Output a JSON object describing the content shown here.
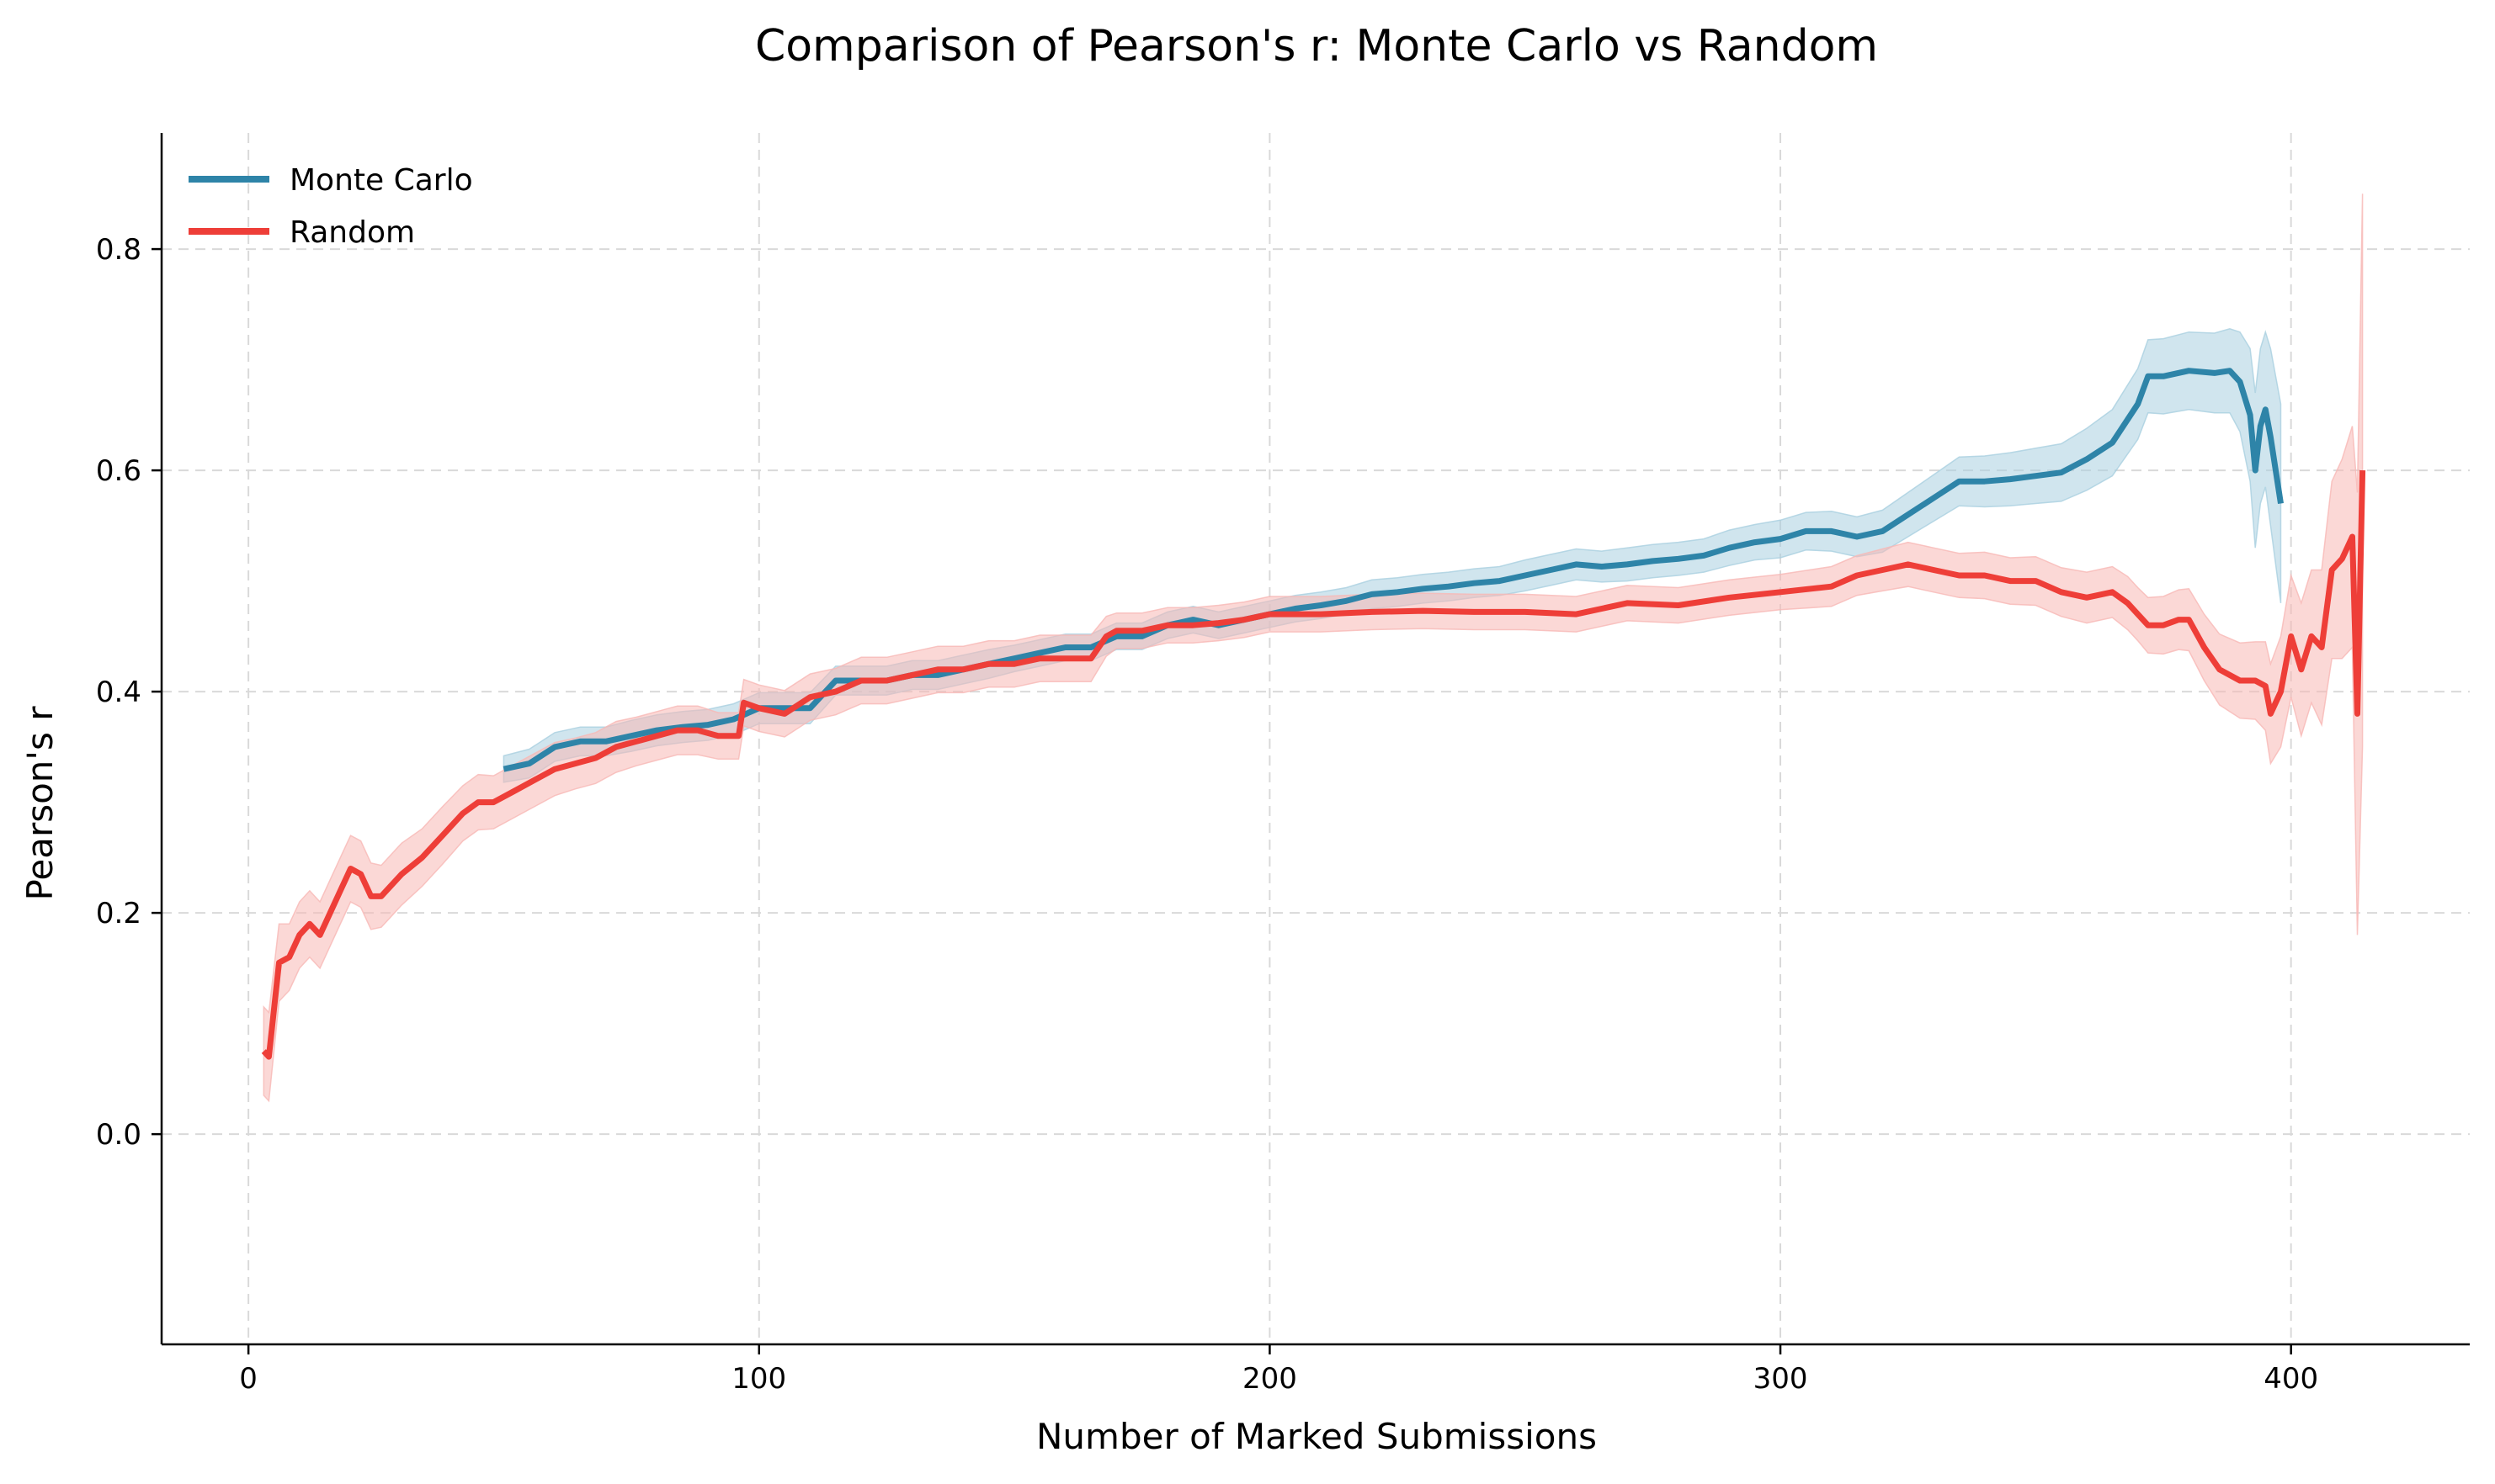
{
  "chart_data": {
    "type": "line",
    "title": "Comparison of Pearson's r: Monte Carlo vs Random",
    "xlabel": "Number of Marked Submissions",
    "ylabel": "Pearson's r",
    "xlim": [
      -17,
      435
    ],
    "ylim": [
      -0.19,
      0.905
    ],
    "xticks": [
      0,
      100,
      200,
      300,
      400
    ],
    "yticks": [
      0.0,
      0.2,
      0.4,
      0.6,
      0.8
    ],
    "xtick_labels": [
      "0",
      "100",
      "200",
      "300",
      "400"
    ],
    "ytick_labels": [
      "0.0",
      "0.2",
      "0.4",
      "0.6",
      "0.8"
    ],
    "grid": true,
    "legend_position": "top-left",
    "series": [
      {
        "name": "Monte Carlo",
        "color": "#2e84a8",
        "band_color": "#a9cfe0",
        "x": [
          50,
          55,
          60,
          65,
          70,
          75,
          80,
          85,
          90,
          95,
          100,
          105,
          110,
          115,
          120,
          125,
          130,
          135,
          140,
          145,
          150,
          155,
          160,
          165,
          170,
          175,
          180,
          185,
          190,
          195,
          200,
          205,
          210,
          215,
          220,
          225,
          230,
          235,
          240,
          245,
          250,
          255,
          260,
          265,
          270,
          275,
          280,
          285,
          290,
          295,
          300,
          305,
          310,
          315,
          320,
          325,
          330,
          335,
          340,
          345,
          350,
          355,
          360,
          365,
          370,
          372,
          375,
          380,
          385,
          388,
          390,
          392,
          393,
          394,
          395,
          396,
          398
        ],
        "y": [
          0.33,
          0.335,
          0.35,
          0.355,
          0.355,
          0.36,
          0.365,
          0.368,
          0.37,
          0.375,
          0.385,
          0.385,
          0.385,
          0.41,
          0.41,
          0.41,
          0.415,
          0.415,
          0.42,
          0.425,
          0.43,
          0.435,
          0.44,
          0.44,
          0.45,
          0.45,
          0.46,
          0.465,
          0.46,
          0.465,
          0.47,
          0.475,
          0.478,
          0.482,
          0.488,
          0.49,
          0.493,
          0.495,
          0.498,
          0.5,
          0.505,
          0.51,
          0.515,
          0.513,
          0.515,
          0.518,
          0.52,
          0.523,
          0.53,
          0.535,
          0.538,
          0.545,
          0.545,
          0.54,
          0.545,
          0.56,
          0.575,
          0.59,
          0.59,
          0.592,
          0.595,
          0.598,
          0.61,
          0.625,
          0.66,
          0.685,
          0.685,
          0.69,
          0.688,
          0.69,
          0.68,
          0.65,
          0.6,
          0.64,
          0.655,
          0.63,
          0.57
        ],
        "band_width": [
          0.012,
          0.013,
          0.013,
          0.013,
          0.013,
          0.014,
          0.014,
          0.014,
          0.014,
          0.014,
          0.014,
          0.014,
          0.014,
          0.013,
          0.013,
          0.013,
          0.013,
          0.013,
          0.013,
          0.013,
          0.012,
          0.012,
          0.012,
          0.012,
          0.012,
          0.012,
          0.012,
          0.012,
          0.012,
          0.012,
          0.012,
          0.012,
          0.012,
          0.012,
          0.013,
          0.013,
          0.013,
          0.013,
          0.013,
          0.013,
          0.014,
          0.014,
          0.014,
          0.014,
          0.015,
          0.015,
          0.015,
          0.015,
          0.016,
          0.016,
          0.017,
          0.017,
          0.018,
          0.018,
          0.019,
          0.02,
          0.021,
          0.022,
          0.023,
          0.024,
          0.025,
          0.026,
          0.028,
          0.03,
          0.032,
          0.033,
          0.034,
          0.035,
          0.036,
          0.038,
          0.045,
          0.06,
          0.07,
          0.07,
          0.07,
          0.08,
          0.09
        ]
      },
      {
        "name": "Random",
        "color": "#ee3e38",
        "band_color": "#f8b8b5",
        "x": [
          3,
          4,
          6,
          8,
          10,
          12,
          14,
          16,
          18,
          20,
          22,
          24,
          26,
          28,
          30,
          34,
          38,
          42,
          45,
          48,
          52,
          56,
          60,
          64,
          68,
          72,
          76,
          80,
          84,
          88,
          92,
          96,
          97,
          100,
          105,
          110,
          115,
          120,
          125,
          130,
          135,
          140,
          145,
          150,
          155,
          160,
          165,
          168,
          170,
          175,
          180,
          185,
          190,
          195,
          200,
          210,
          220,
          230,
          240,
          250,
          260,
          270,
          280,
          290,
          300,
          310,
          315,
          320,
          325,
          330,
          335,
          340,
          345,
          350,
          355,
          360,
          365,
          368,
          370,
          372,
          375,
          378,
          380,
          383,
          386,
          390,
          393,
          395,
          396,
          398,
          400,
          402,
          404,
          406,
          408,
          410,
          412,
          413,
          414
        ],
        "y": [
          0.075,
          0.07,
          0.155,
          0.16,
          0.18,
          0.19,
          0.18,
          0.2,
          0.22,
          0.24,
          0.235,
          0.215,
          0.215,
          0.225,
          0.235,
          0.25,
          0.27,
          0.29,
          0.3,
          0.3,
          0.31,
          0.32,
          0.33,
          0.335,
          0.34,
          0.35,
          0.355,
          0.36,
          0.365,
          0.365,
          0.36,
          0.36,
          0.39,
          0.385,
          0.38,
          0.395,
          0.4,
          0.41,
          0.41,
          0.415,
          0.42,
          0.42,
          0.425,
          0.425,
          0.43,
          0.43,
          0.43,
          0.45,
          0.455,
          0.455,
          0.46,
          0.46,
          0.462,
          0.465,
          0.47,
          0.47,
          0.472,
          0.473,
          0.472,
          0.472,
          0.47,
          0.48,
          0.478,
          0.485,
          0.49,
          0.495,
          0.505,
          0.51,
          0.515,
          0.51,
          0.505,
          0.505,
          0.5,
          0.5,
          0.49,
          0.485,
          0.49,
          0.48,
          0.47,
          0.46,
          0.46,
          0.465,
          0.465,
          0.44,
          0.42,
          0.41,
          0.41,
          0.405,
          0.38,
          0.4,
          0.45,
          0.42,
          0.45,
          0.44,
          0.51,
          0.52,
          0.54,
          0.38,
          0.6
        ],
        "band_width": [
          0.04,
          0.04,
          0.035,
          0.03,
          0.03,
          0.03,
          0.03,
          0.03,
          0.03,
          0.03,
          0.03,
          0.03,
          0.028,
          0.028,
          0.028,
          0.026,
          0.026,
          0.025,
          0.025,
          0.024,
          0.024,
          0.024,
          0.024,
          0.023,
          0.023,
          0.023,
          0.022,
          0.022,
          0.022,
          0.022,
          0.021,
          0.021,
          0.021,
          0.021,
          0.021,
          0.021,
          0.021,
          0.021,
          0.021,
          0.021,
          0.021,
          0.021,
          0.021,
          0.021,
          0.021,
          0.021,
          0.021,
          0.018,
          0.016,
          0.016,
          0.016,
          0.016,
          0.016,
          0.016,
          0.016,
          0.016,
          0.016,
          0.016,
          0.016,
          0.016,
          0.016,
          0.016,
          0.016,
          0.016,
          0.016,
          0.018,
          0.018,
          0.019,
          0.02,
          0.02,
          0.02,
          0.021,
          0.021,
          0.022,
          0.022,
          0.023,
          0.023,
          0.024,
          0.024,
          0.025,
          0.026,
          0.027,
          0.028,
          0.03,
          0.032,
          0.034,
          0.035,
          0.04,
          0.045,
          0.05,
          0.055,
          0.06,
          0.06,
          0.07,
          0.08,
          0.09,
          0.1,
          0.2,
          0.25
        ]
      }
    ]
  }
}
